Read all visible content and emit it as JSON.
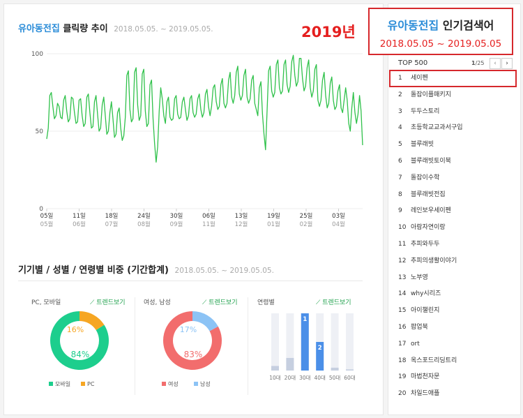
{
  "click_trend": {
    "keyword": "유아동전집",
    "title_rest": "클릭량 추이",
    "period": "2018.05.05. ~ 2019.05.05."
  },
  "year_label": "2019년",
  "highlight_box": {
    "keyword": "유아동전집",
    "title_rest": "인기검색어",
    "date_range": "2018.05.05 ~ 2019.05.05"
  },
  "chart_data": {
    "type": "line",
    "ylim": [
      0,
      100
    ],
    "yticks": [
      "100",
      "50",
      "0"
    ],
    "grid": true,
    "line_color": "#2fc14a",
    "x_ticks": [
      {
        "day": "05일",
        "month": "05월"
      },
      {
        "day": "11일",
        "month": "06월"
      },
      {
        "day": "18일",
        "month": "07월"
      },
      {
        "day": "24일",
        "month": "08월"
      },
      {
        "day": "30일",
        "month": "09월"
      },
      {
        "day": "06일",
        "month": "11월"
      },
      {
        "day": "13일",
        "month": "12월"
      },
      {
        "day": "19일",
        "month": "01월"
      },
      {
        "day": "25일",
        "month": "02월"
      },
      {
        "day": "03일",
        "month": "04월"
      }
    ],
    "series": [
      {
        "values": [
          45,
          52,
          73,
          75,
          66,
          58,
          60,
          68,
          66,
          59,
          58,
          70,
          73,
          63,
          56,
          58,
          72,
          71,
          62,
          55,
          56,
          70,
          71,
          60,
          53,
          55,
          72,
          74,
          62,
          52,
          53,
          69,
          73,
          61,
          50,
          52,
          67,
          72,
          60,
          48,
          50,
          62,
          69,
          58,
          46,
          48,
          62,
          65,
          52,
          44,
          47,
          59,
          86,
          89,
          64,
          56,
          58,
          88,
          91,
          67,
          57,
          60,
          87,
          90,
          63,
          53,
          55,
          80,
          83,
          58,
          42,
          30,
          40,
          63,
          78,
          71,
          60,
          55,
          69,
          72,
          59,
          57,
          58,
          71,
          73,
          61,
          58,
          59,
          69,
          72,
          64,
          57,
          60,
          71,
          73,
          62,
          59,
          61,
          71,
          74,
          64,
          59,
          62,
          74,
          77,
          66,
          60,
          66,
          78,
          80,
          69,
          64,
          66,
          80,
          84,
          68,
          65,
          68,
          83,
          88,
          72,
          68,
          73,
          88,
          92,
          74,
          70,
          73,
          86,
          90,
          72,
          68,
          71,
          83,
          86,
          68,
          64,
          60,
          78,
          82,
          61,
          48,
          38,
          63,
          89,
          92,
          76,
          72,
          75,
          93,
          96,
          78,
          74,
          76,
          93,
          96,
          80,
          75,
          79,
          95,
          99,
          86,
          79,
          82,
          97,
          97,
          84,
          76,
          79,
          91,
          96,
          78,
          72,
          76,
          90,
          93,
          70,
          66,
          70,
          83,
          88,
          73,
          65,
          68,
          81,
          85,
          70,
          64,
          66,
          76,
          80,
          65,
          62,
          70,
          78,
          70,
          55,
          50,
          65,
          75,
          62,
          55,
          61,
          73,
          63,
          41
        ]
      }
    ]
  },
  "breakdown": {
    "title": "기기별 / 성별 / 연령별 비중 (기간합계)",
    "period": "2018.05.05. ~ 2019.05.05.",
    "trend_label": "트렌드보기",
    "device": {
      "label": "PC, 모바일",
      "mobile_pct": 84,
      "pc_pct": 16,
      "mobile_text": "84%",
      "pc_text": "16%",
      "legend_mobile": "모바일",
      "legend_pc": "PC",
      "color_mobile": "#1dce8d",
      "color_pc": "#f6a623"
    },
    "gender": {
      "label": "여성, 남성",
      "female_pct": 83,
      "male_pct": 17,
      "female_text": "83%",
      "male_text": "17%",
      "legend_female": "여성",
      "legend_male": "남성",
      "color_female": "#f26d6d",
      "color_male": "#8cc3f5"
    },
    "age": {
      "label": "연령별",
      "bars": [
        {
          "label": "10대",
          "value": 8,
          "rank": ""
        },
        {
          "label": "20대",
          "value": 22,
          "rank": ""
        },
        {
          "label": "30대",
          "value": 100,
          "rank": "1"
        },
        {
          "label": "40대",
          "value": 50,
          "rank": "2"
        },
        {
          "label": "50대",
          "value": 5,
          "rank": ""
        },
        {
          "label": "60대",
          "value": 2,
          "rank": ""
        }
      ]
    }
  },
  "top_list": {
    "header": "TOP 500",
    "page": "1",
    "page_total": "/25",
    "prev_icon": "chevron-left-icon",
    "next_icon": "chevron-right-icon",
    "items": [
      {
        "rank": "1",
        "name": "세이펜"
      },
      {
        "rank": "2",
        "name": "돌잡이플패키지"
      },
      {
        "rank": "3",
        "name": "두두스토리"
      },
      {
        "rank": "4",
        "name": "초등학교교과서구입"
      },
      {
        "rank": "5",
        "name": "블루래빗"
      },
      {
        "rank": "6",
        "name": "블루래빗토이북"
      },
      {
        "rank": "7",
        "name": "돌잡이수학"
      },
      {
        "rank": "8",
        "name": "블루래빗전집"
      },
      {
        "rank": "9",
        "name": "레인보우세이펜"
      },
      {
        "rank": "10",
        "name": "아람자연이랑"
      },
      {
        "rank": "11",
        "name": "추피와두두"
      },
      {
        "rank": "12",
        "name": "추피의생활이야기"
      },
      {
        "rank": "13",
        "name": "노부영"
      },
      {
        "rank": "14",
        "name": "why시리즈"
      },
      {
        "rank": "15",
        "name": "아이챌린지"
      },
      {
        "rank": "16",
        "name": "팝업북"
      },
      {
        "rank": "17",
        "name": "ort"
      },
      {
        "rank": "18",
        "name": "옥스포드리딩트리"
      },
      {
        "rank": "19",
        "name": "마법천자문"
      },
      {
        "rank": "20",
        "name": "차일드애플"
      }
    ]
  }
}
